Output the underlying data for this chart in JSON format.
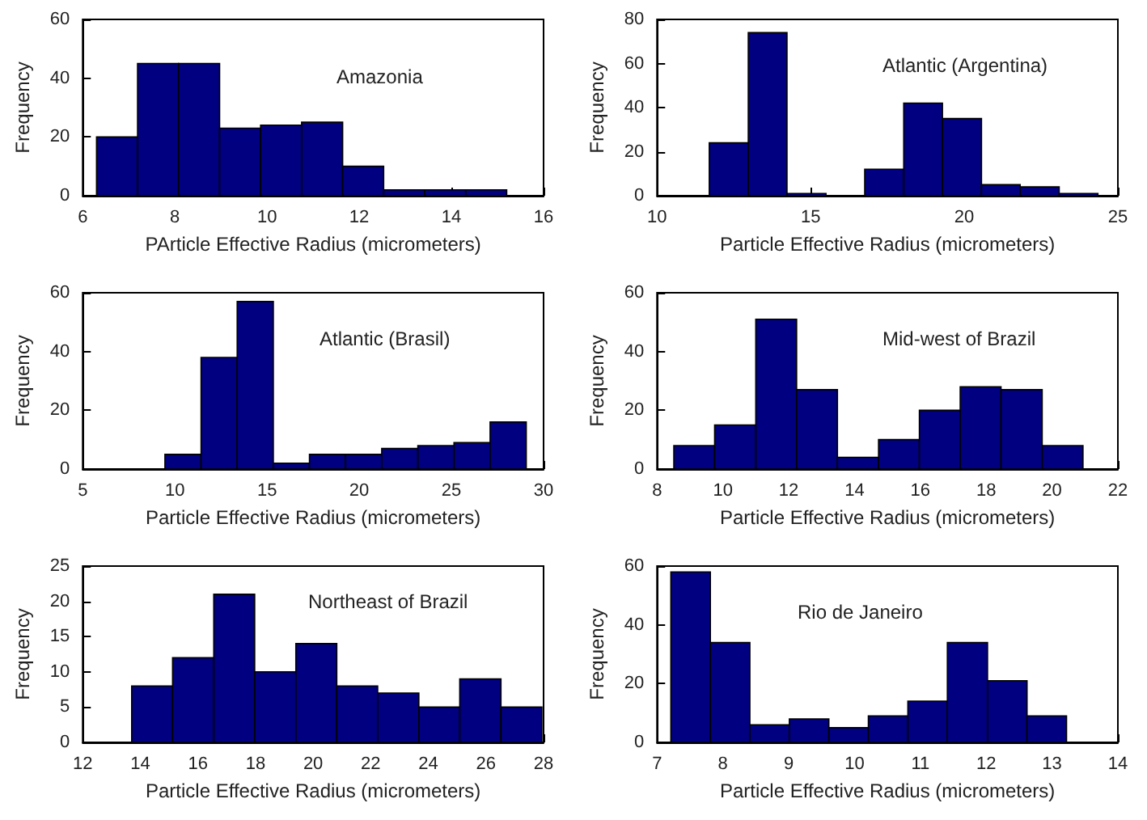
{
  "chart_data": [
    {
      "type": "histogram",
      "title": "Amazonia",
      "xlabel": "PArticle Effective Radius (micrometers)",
      "ylabel": "Frequency",
      "color": "#000080",
      "bins": [
        6.3,
        7.19,
        8.08,
        8.97,
        9.86,
        10.75,
        11.64,
        12.53,
        13.42,
        14.31,
        15.2
      ],
      "values": [
        20,
        45,
        45,
        23,
        24,
        25,
        10,
        2,
        2,
        2
      ],
      "xlim": [
        6,
        16
      ],
      "xticks": [
        6,
        8,
        10,
        12,
        14,
        16
      ],
      "ylim": [
        0,
        60
      ],
      "yticks": [
        0,
        20,
        40,
        60
      ]
    },
    {
      "type": "histogram",
      "title": "Atlantic (Argentina)",
      "xlabel": "Particle Effective Radius (micrometers)",
      "ylabel": "Frequency",
      "color": "#000080",
      "bins": [
        11.7,
        12.97,
        14.23,
        15.5,
        16.76,
        18.03,
        19.29,
        20.56,
        21.82,
        23.09,
        24.35
      ],
      "values": [
        24,
        74,
        1,
        0,
        12,
        42,
        35,
        5,
        4,
        1
      ],
      "xlim": [
        10,
        25
      ],
      "xticks": [
        10,
        15,
        20,
        25
      ],
      "ylim": [
        0,
        80
      ],
      "yticks": [
        0,
        20,
        40,
        60,
        80
      ]
    },
    {
      "type": "histogram",
      "title": "Atlantic (Brasil)",
      "xlabel": "Particle Effective Radius (micrometers)",
      "ylabel": "Frequency",
      "color": "#000080",
      "bins": [
        9.46,
        11.42,
        13.38,
        15.34,
        17.3,
        19.26,
        21.22,
        23.18,
        25.14,
        27.1,
        29.06
      ],
      "values": [
        5,
        38,
        57,
        2,
        5,
        5,
        7,
        8,
        9,
        16
      ],
      "xlim": [
        5,
        30
      ],
      "xticks": [
        5,
        10,
        15,
        20,
        25,
        30
      ],
      "ylim": [
        0,
        60
      ],
      "yticks": [
        0,
        20,
        40,
        60
      ]
    },
    {
      "type": "histogram",
      "title": "Mid-west of Brazil",
      "xlabel": "Particle Effective Radius (micrometers)",
      "ylabel": "Frequency",
      "color": "#000080",
      "bins": [
        8.51,
        9.75,
        11.0,
        12.24,
        13.48,
        14.73,
        15.97,
        17.21,
        18.45,
        19.7,
        20.94
      ],
      "values": [
        8,
        15,
        51,
        27,
        4,
        10,
        20,
        28,
        27,
        8
      ],
      "xlim": [
        8,
        22
      ],
      "xticks": [
        8,
        10,
        12,
        14,
        16,
        18,
        20,
        22
      ],
      "ylim": [
        0,
        60
      ],
      "yticks": [
        0,
        20,
        40,
        60
      ]
    },
    {
      "type": "histogram",
      "title": "Northeast of Brazil",
      "xlabel": "Particle Effective Radius (micrometers)",
      "ylabel": "Frequency",
      "color": "#000080",
      "bins": [
        13.7,
        15.12,
        16.55,
        17.97,
        19.4,
        20.82,
        22.24,
        23.67,
        25.09,
        26.52,
        27.94
      ],
      "values": [
        8,
        12,
        21,
        10,
        14,
        8,
        7,
        5,
        9,
        5
      ],
      "xlim": [
        12,
        28
      ],
      "xticks": [
        12,
        14,
        16,
        18,
        20,
        22,
        24,
        26,
        28
      ],
      "ylim": [
        0,
        25
      ],
      "yticks": [
        0,
        5,
        10,
        15,
        20,
        25
      ]
    },
    {
      "type": "histogram",
      "title": "Rio de Janeiro",
      "xlabel": "Particle Effective Radius (micrometers)",
      "ylabel": "Frequency",
      "color": "#000080",
      "bins": [
        7.21,
        7.81,
        8.41,
        9.01,
        9.61,
        10.21,
        10.81,
        11.41,
        12.02,
        12.62,
        13.22
      ],
      "values": [
        58,
        34,
        6,
        8,
        5,
        9,
        14,
        34,
        21,
        9
      ],
      "xlim": [
        7,
        14
      ],
      "xticks": [
        7,
        8,
        9,
        10,
        11,
        12,
        13,
        14
      ],
      "ylim": [
        0,
        60
      ],
      "yticks": [
        0,
        20,
        40,
        60
      ]
    }
  ]
}
